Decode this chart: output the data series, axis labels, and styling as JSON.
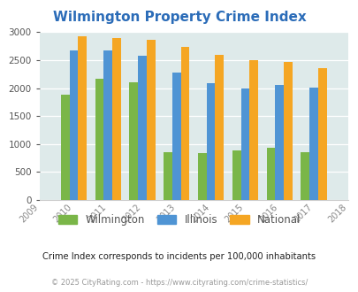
{
  "title": "Wilmington Property Crime Index",
  "all_years": [
    2009,
    2010,
    2011,
    2012,
    2013,
    2014,
    2015,
    2016,
    2017,
    2018
  ],
  "bar_years": [
    2010,
    2011,
    2012,
    2013,
    2014,
    2015,
    2016,
    2017
  ],
  "wilmington": [
    1880,
    2170,
    2110,
    850,
    840,
    890,
    930,
    850
  ],
  "illinois": [
    2670,
    2680,
    2580,
    2280,
    2090,
    2000,
    2050,
    2010
  ],
  "national": [
    2930,
    2900,
    2860,
    2740,
    2600,
    2500,
    2460,
    2360
  ],
  "color_wilmington": "#7ab648",
  "color_illinois": "#4f94d4",
  "color_national": "#f5a623",
  "ylim": [
    0,
    3000
  ],
  "yticks": [
    0,
    500,
    1000,
    1500,
    2000,
    2500,
    3000
  ],
  "bg_color": "#deeaea",
  "subtitle": "Crime Index corresponds to incidents per 100,000 inhabitants",
  "footer": "© 2025 CityRating.com - https://www.cityrating.com/crime-statistics/",
  "legend_labels": [
    "Wilmington",
    "Illinois",
    "National"
  ],
  "title_color": "#2b6cb8",
  "subtitle_color": "#222222",
  "footer_color": "#999999"
}
